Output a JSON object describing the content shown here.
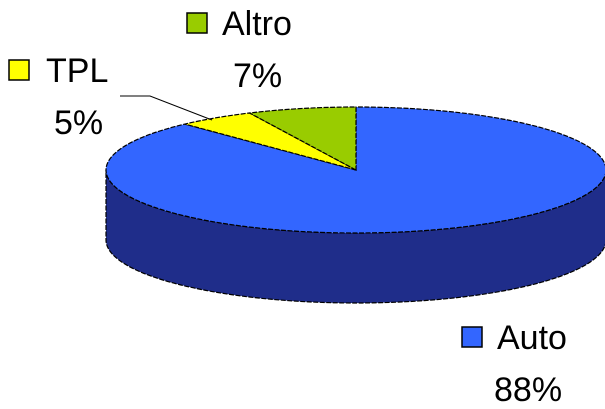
{
  "chart_data": {
    "type": "pie",
    "style": "3d",
    "series": [
      {
        "name": "Auto",
        "value": 88,
        "label": "88%",
        "color": "#3366ff",
        "side_color": "#1f2d8a"
      },
      {
        "name": "TPL",
        "value": 5,
        "label": "5%",
        "color": "#ffff00",
        "side_color": "#999900"
      },
      {
        "name": "Altro",
        "value": 7,
        "label": "7%",
        "color": "#99cc00",
        "side_color": "#557700"
      }
    ],
    "legend_placement": "next-to-slices",
    "outline_color": "#000000"
  }
}
